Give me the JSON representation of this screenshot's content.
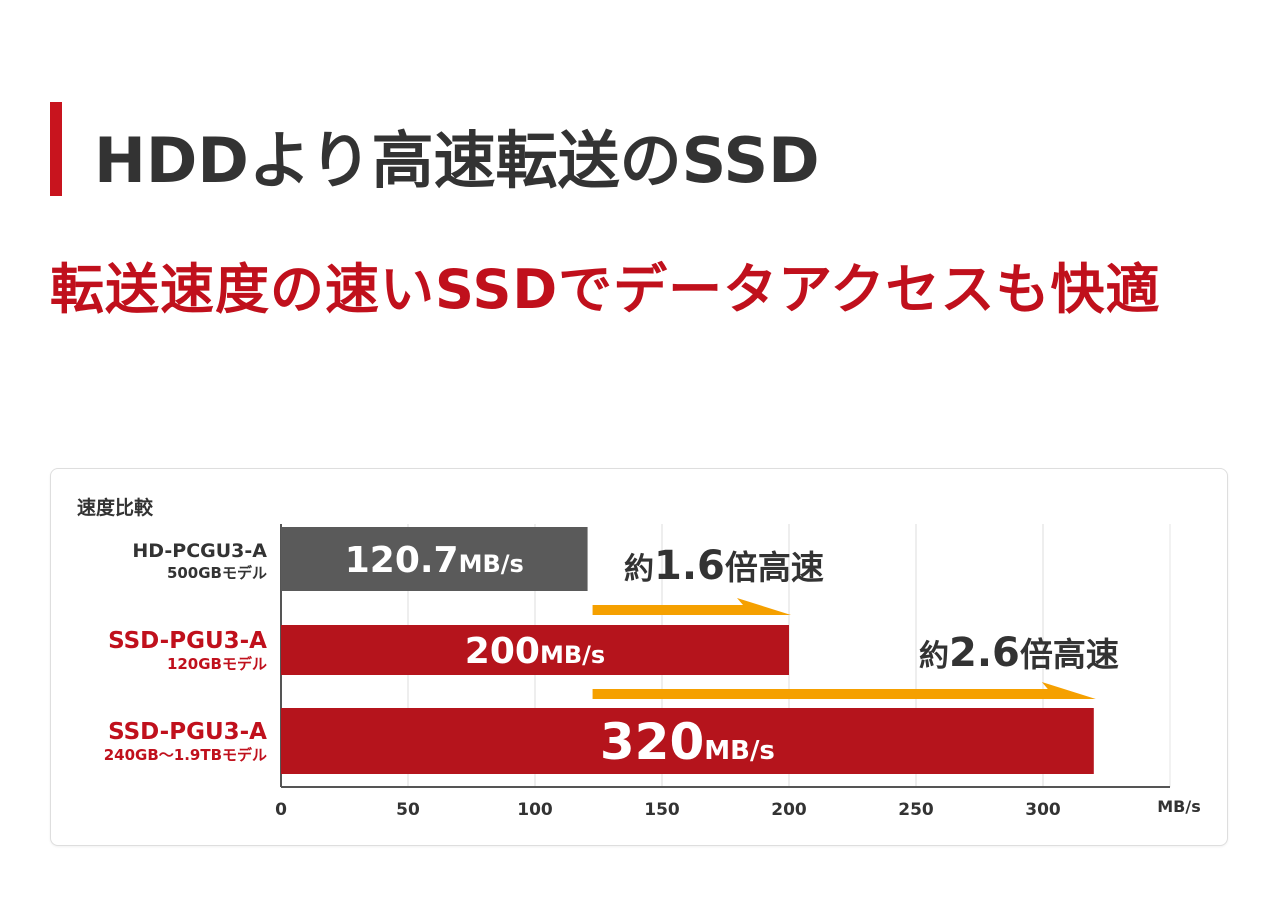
{
  "heading": {
    "title": "HDDより高速転送のSSD"
  },
  "subheading": {
    "text": "転送速度の速いSSDでデータアクセスも快適"
  },
  "chart_data": {
    "type": "bar",
    "orientation": "horizontal",
    "title": "速度比較",
    "unit": "MB/s",
    "xlim": [
      0,
      350
    ],
    "ticks": [
      0,
      50,
      100,
      150,
      200,
      250,
      300
    ],
    "grid": true,
    "categories": [
      {
        "name": "HD-PCGU3-A",
        "sub": "500GBモデル",
        "color": "#c0101c",
        "subColor": "#c0101c"
      },
      {
        "name": "SSD-PGU3-A",
        "sub": "120GBモデル",
        "color": "#c0101c",
        "subColor": "#c0101c"
      },
      {
        "name": "SSD-PGU3-A",
        "sub": "240GB～1.9TBモデル",
        "color": "#c0101c",
        "subColor": "#c0101c"
      }
    ],
    "values": [
      120.7,
      200,
      320
    ],
    "value_labels": [
      {
        "number": "120.7",
        "unit": "MB/s"
      },
      {
        "number": "200",
        "unit": "MB/s"
      },
      {
        "number": "320",
        "unit": "MB/s"
      }
    ],
    "bar_colors": [
      "#5a5a5a",
      "#b5141c",
      "#b5141c"
    ],
    "first_category_color": "#333333",
    "annotations": [
      {
        "from": 120.7,
        "to": 200,
        "prefix": "約",
        "number": "1.6",
        "suffix": "倍高速"
      },
      {
        "from": 120.7,
        "to": 320,
        "prefix": "約",
        "number": "2.6",
        "suffix": "倍高速"
      }
    ],
    "arrow_color": "#f5a000"
  }
}
